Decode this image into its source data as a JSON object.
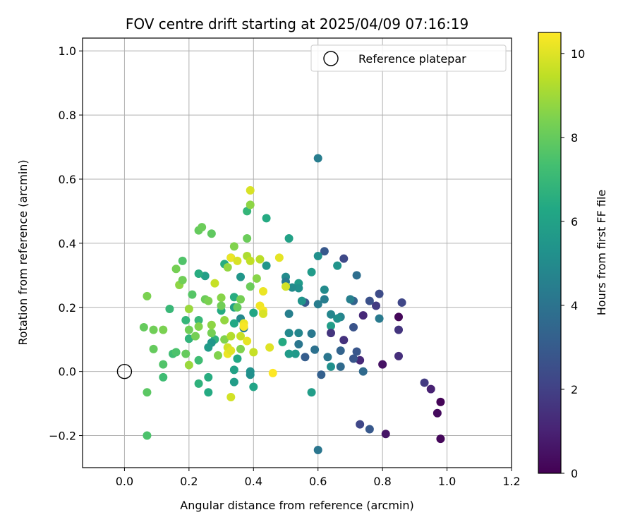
{
  "chart_data": {
    "type": "scatter",
    "title": "FOV centre drift starting at 2025/04/09 07:16:19",
    "xlabel": "Angular distance from reference (arcmin)",
    "ylabel": "Rotation from reference (arcmin)",
    "xlim": [
      -0.13,
      1.2
    ],
    "ylim": [
      -0.3,
      1.04
    ],
    "xticks": [
      0.0,
      0.2,
      0.4,
      0.6,
      0.8,
      1.0,
      1.2
    ],
    "xtick_labels": [
      "0.0",
      "0.2",
      "0.4",
      "0.6",
      "0.8",
      "1.0",
      "1.2"
    ],
    "yticks": [
      -0.2,
      0.0,
      0.2,
      0.4,
      0.6,
      0.8,
      1.0
    ],
    "ytick_labels": [
      "−0.2",
      "0.0",
      "0.2",
      "0.4",
      "0.6",
      "0.8",
      "1.0"
    ],
    "grid": true,
    "legend": {
      "placement": "top-right",
      "label": "Reference platepar"
    },
    "reference": {
      "x": 0.0,
      "y": 0.0,
      "marker": "open-circle"
    },
    "colorbar": {
      "label": "Hours from first FF file",
      "colormap": "viridis",
      "min": 0,
      "max": 10.5,
      "ticks": [
        0,
        2,
        4,
        6,
        8,
        10
      ],
      "tick_labels": [
        "0",
        "2",
        "4",
        "6",
        "8",
        "10"
      ]
    },
    "points": [
      [
        0.98,
        -0.095,
        0.1
      ],
      [
        0.98,
        -0.21,
        0.2
      ],
      [
        0.97,
        -0.13,
        0.3
      ],
      [
        0.95,
        -0.055,
        1.0
      ],
      [
        0.93,
        -0.035,
        1.8
      ],
      [
        0.86,
        0.215,
        2.2
      ],
      [
        0.85,
        0.17,
        0.2
      ],
      [
        0.85,
        0.13,
        1.6
      ],
      [
        0.85,
        0.048,
        1.4
      ],
      [
        0.81,
        -0.195,
        0.6
      ],
      [
        0.8,
        0.022,
        0.5
      ],
      [
        0.79,
        0.242,
        2.4
      ],
      [
        0.79,
        0.165,
        4.3
      ],
      [
        0.78,
        0.205,
        1.8
      ],
      [
        0.76,
        0.22,
        2.6
      ],
      [
        0.76,
        -0.18,
        2.9
      ],
      [
        0.74,
        0.175,
        1.2
      ],
      [
        0.74,
        -0.0,
        3.6
      ],
      [
        0.73,
        0.035,
        1.2
      ],
      [
        0.73,
        -0.165,
        2.2
      ],
      [
        0.72,
        0.062,
        2.8
      ],
      [
        0.72,
        0.3,
        3.8
      ],
      [
        0.71,
        0.22,
        3.3
      ],
      [
        0.71,
        0.138,
        2.7
      ],
      [
        0.71,
        0.04,
        2.8
      ],
      [
        0.7,
        0.225,
        4.5
      ],
      [
        0.68,
        0.352,
        2.3
      ],
      [
        0.68,
        0.098,
        1.5
      ],
      [
        0.67,
        0.17,
        4.7
      ],
      [
        0.67,
        0.065,
        3.3
      ],
      [
        0.66,
        0.33,
        5.4
      ],
      [
        0.66,
        0.165,
        5.2
      ],
      [
        0.67,
        0.015,
        3.6
      ],
      [
        0.64,
        0.178,
        4.8
      ],
      [
        0.64,
        0.142,
        5.8
      ],
      [
        0.64,
        0.12,
        1.6
      ],
      [
        0.64,
        0.015,
        5.2
      ],
      [
        0.63,
        0.045,
        4.1
      ],
      [
        0.62,
        0.375,
        2.9
      ],
      [
        0.62,
        0.255,
        5.0
      ],
      [
        0.62,
        0.225,
        4.4
      ],
      [
        0.61,
        -0.01,
        3.2
      ],
      [
        0.6,
        0.665,
        4.4
      ],
      [
        0.6,
        0.36,
        5.2
      ],
      [
        0.6,
        0.21,
        4.4
      ],
      [
        0.6,
        -0.245,
        4.1
      ],
      [
        0.59,
        0.068,
        3.9
      ],
      [
        0.58,
        0.31,
        5.7
      ],
      [
        0.58,
        0.118,
        4.2
      ],
      [
        0.58,
        -0.065,
        5.8
      ],
      [
        0.56,
        0.215,
        2.9
      ],
      [
        0.56,
        0.045,
        3.1
      ],
      [
        0.55,
        0.22,
        5.4
      ],
      [
        0.54,
        0.275,
        5.7
      ],
      [
        0.54,
        0.26,
        5.2
      ],
      [
        0.54,
        0.12,
        4.8
      ],
      [
        0.54,
        0.085,
        4.1
      ],
      [
        0.53,
        0.055,
        5.6
      ],
      [
        0.52,
        0.262,
        5.0
      ],
      [
        0.51,
        0.18,
        4.5
      ],
      [
        0.51,
        0.12,
        4.9
      ],
      [
        0.51,
        0.055,
        5.7
      ],
      [
        0.51,
        0.415,
        6.0
      ],
      [
        0.5,
        0.295,
        5.0
      ],
      [
        0.5,
        0.28,
        4.3
      ],
      [
        0.49,
        0.092,
        6.4
      ],
      [
        0.44,
        0.478,
        6.4
      ],
      [
        0.44,
        0.33,
        5.5
      ],
      [
        0.4,
        0.183,
        6.2
      ],
      [
        0.4,
        -0.048,
        6.1
      ],
      [
        0.39,
        0.0,
        5.3
      ],
      [
        0.39,
        -0.01,
        5.2
      ],
      [
        0.38,
        0.5,
        6.9
      ],
      [
        0.37,
        0.135,
        4.5
      ],
      [
        0.36,
        0.295,
        5.5
      ],
      [
        0.36,
        0.165,
        4.9
      ],
      [
        0.35,
        0.04,
        6.3
      ],
      [
        0.34,
        0.15,
        6.3
      ],
      [
        0.34,
        0.232,
        6.5
      ],
      [
        0.34,
        0.2,
        5.9
      ],
      [
        0.34,
        0.005,
        6.0
      ],
      [
        0.34,
        -0.033,
        5.8
      ],
      [
        0.33,
        0.355,
        5.9
      ],
      [
        0.31,
        0.335,
        6.5
      ],
      [
        0.3,
        0.19,
        6.4
      ],
      [
        0.28,
        0.1,
        6.7
      ],
      [
        0.27,
        0.09,
        5.5
      ],
      [
        0.26,
        0.075,
        5.7
      ],
      [
        0.26,
        -0.065,
        6.4
      ],
      [
        0.26,
        -0.018,
        6.5
      ],
      [
        0.25,
        0.298,
        5.9
      ],
      [
        0.23,
        0.305,
        6.5
      ],
      [
        0.23,
        0.16,
        7.0
      ],
      [
        0.23,
        -0.038,
        6.7
      ],
      [
        0.23,
        0.035,
        7.2
      ],
      [
        0.2,
        0.102,
        6.8
      ],
      [
        0.19,
        0.16,
        6.9
      ],
      [
        0.18,
        0.345,
        7.6
      ],
      [
        0.16,
        0.32,
        8.3
      ],
      [
        0.15,
        0.055,
        7.2
      ],
      [
        0.14,
        0.195,
        7.0
      ],
      [
        0.12,
        0.022,
        7.6
      ],
      [
        0.12,
        -0.018,
        7.2
      ],
      [
        0.09,
        0.07,
        8.0
      ],
      [
        0.07,
        0.235,
        8.4
      ],
      [
        0.07,
        -0.065,
        7.8
      ],
      [
        0.07,
        -0.2,
        7.5
      ],
      [
        0.06,
        0.138,
        8.0
      ],
      [
        0.09,
        0.13,
        8.2
      ],
      [
        0.12,
        0.13,
        8.4
      ],
      [
        0.16,
        0.06,
        7.5
      ],
      [
        0.17,
        0.27,
        8.7
      ],
      [
        0.18,
        0.285,
        8.2
      ],
      [
        0.19,
        0.055,
        8.0
      ],
      [
        0.2,
        0.02,
        8.9
      ],
      [
        0.2,
        0.195,
        8.9
      ],
      [
        0.2,
        0.13,
        8.2
      ],
      [
        0.21,
        0.24,
        7.7
      ],
      [
        0.22,
        0.11,
        8.3
      ],
      [
        0.23,
        0.14,
        8.5
      ],
      [
        0.23,
        0.44,
        8.0
      ],
      [
        0.24,
        0.45,
        8.1
      ],
      [
        0.25,
        0.225,
        8.1
      ],
      [
        0.26,
        0.22,
        8.4
      ],
      [
        0.27,
        0.43,
        7.9
      ],
      [
        0.27,
        0.12,
        8.3
      ],
      [
        0.27,
        0.145,
        8.7
      ],
      [
        0.28,
        0.275,
        9.6
      ],
      [
        0.29,
        0.05,
        8.5
      ],
      [
        0.3,
        0.23,
        8.6
      ],
      [
        0.3,
        0.205,
        8.2
      ],
      [
        0.31,
        0.1,
        8.5
      ],
      [
        0.31,
        0.16,
        8.8
      ],
      [
        0.32,
        0.325,
        8.8
      ],
      [
        0.32,
        0.075,
        9.8
      ],
      [
        0.32,
        0.055,
        10.2
      ],
      [
        0.33,
        0.065,
        10.0
      ],
      [
        0.33,
        0.355,
        10.2
      ],
      [
        0.33,
        0.11,
        9.3
      ],
      [
        0.33,
        -0.08,
        9.8
      ],
      [
        0.34,
        0.39,
        8.5
      ],
      [
        0.35,
        0.345,
        9.9
      ],
      [
        0.35,
        0.2,
        8.0
      ],
      [
        0.36,
        0.225,
        8.3
      ],
      [
        0.36,
        0.07,
        8.5
      ],
      [
        0.36,
        0.11,
        9.6
      ],
      [
        0.37,
        0.15,
        10.2
      ],
      [
        0.37,
        0.14,
        10.4
      ],
      [
        0.38,
        0.095,
        10.1
      ],
      [
        0.38,
        0.415,
        8.1
      ],
      [
        0.38,
        0.36,
        9.2
      ],
      [
        0.39,
        0.265,
        8.1
      ],
      [
        0.39,
        0.345,
        9.5
      ],
      [
        0.39,
        0.52,
        8.7
      ],
      [
        0.39,
        0.565,
        9.9
      ],
      [
        0.4,
        0.06,
        9.6
      ],
      [
        0.41,
        0.29,
        8.6
      ],
      [
        0.42,
        0.35,
        9.4
      ],
      [
        0.42,
        0.205,
        10.3
      ],
      [
        0.43,
        0.25,
        10.2
      ],
      [
        0.43,
        0.19,
        10.4
      ],
      [
        0.43,
        0.18,
        9.9
      ],
      [
        0.45,
        0.075,
        10.0
      ],
      [
        0.46,
        -0.005,
        10.5
      ],
      [
        0.48,
        0.355,
        10.1
      ],
      [
        0.5,
        0.265,
        9.8
      ]
    ]
  }
}
